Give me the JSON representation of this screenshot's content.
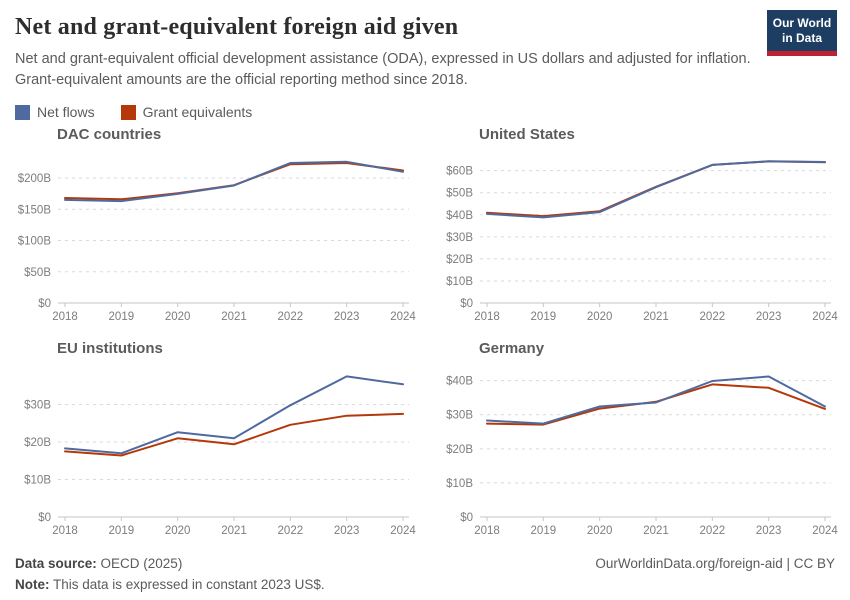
{
  "header": {
    "title": "Net and grant-equivalent foreign aid given",
    "subtitle": "Net and grant-equivalent official development assistance (ODA), expressed in US dollars and adjusted for inflation. Grant-equivalent amounts are the official reporting method since 2018.",
    "logo": {
      "line1": "Our World",
      "line2": "in Data"
    }
  },
  "legend": {
    "items": [
      {
        "label": "Net flows",
        "color": "#4f6a9e"
      },
      {
        "label": "Grant equivalents",
        "color": "#b5380a"
      }
    ]
  },
  "chart_data": [
    {
      "type": "line",
      "title": "DAC countries",
      "x": [
        2018,
        2019,
        2020,
        2021,
        2022,
        2023,
        2024
      ],
      "series": [
        {
          "name": "Net flows",
          "color": "#4f6a9e",
          "values": [
            165,
            163,
            174.5,
            188,
            224,
            226,
            210
          ]
        },
        {
          "name": "Grant equivalents",
          "color": "#b5380a",
          "values": [
            168,
            166,
            175.5,
            188.5,
            222,
            224,
            212
          ]
        }
      ],
      "ylim": [
        0,
        240
      ],
      "ytick_values": [
        0,
        50,
        100,
        150,
        200
      ],
      "ytick_labels": [
        "$0",
        "$50B",
        "$100B",
        "$150B",
        "$200B"
      ],
      "xlabel": "",
      "ylabel": "",
      "grid": "dashed-horizontal",
      "legend_position": "top-of-figure"
    },
    {
      "type": "line",
      "title": "United States",
      "x": [
        2018,
        2019,
        2020,
        2021,
        2022,
        2023,
        2024
      ],
      "series": [
        {
          "name": "Net flows",
          "color": "#4f6a9e",
          "values": [
            40.4,
            38.8,
            41.2,
            52.5,
            62.6,
            64.3,
            63.9
          ]
        },
        {
          "name": "Grant equivalents",
          "color": "#b5380a",
          "values": [
            40.9,
            39.4,
            41.6,
            52.7,
            62.6,
            64.2,
            63.8
          ]
        }
      ],
      "ylim": [
        0,
        68
      ],
      "ytick_values": [
        0,
        10,
        20,
        30,
        40,
        50,
        60
      ],
      "ytick_labels": [
        "$0",
        "$10B",
        "$20B",
        "$30B",
        "$40B",
        "$50B",
        "$60B"
      ],
      "xlabel": "",
      "ylabel": "",
      "grid": "dashed-horizontal",
      "legend_position": "top-of-figure"
    },
    {
      "type": "line",
      "title": "EU institutions",
      "x": [
        2018,
        2019,
        2020,
        2021,
        2022,
        2023,
        2024
      ],
      "series": [
        {
          "name": "Net flows",
          "color": "#4f6a9e",
          "values": [
            18.3,
            17.0,
            22.6,
            21.0,
            29.8,
            37.5,
            35.4
          ]
        },
        {
          "name": "Grant equivalents",
          "color": "#b5380a",
          "values": [
            17.5,
            16.4,
            21.0,
            19.4,
            24.6,
            27.0,
            27.5
          ]
        }
      ],
      "ylim": [
        0,
        40
      ],
      "ytick_values": [
        0,
        10,
        20,
        30
      ],
      "ytick_labels": [
        "$0",
        "$10B",
        "$20B",
        "$30B"
      ],
      "xlabel": "",
      "ylabel": "",
      "grid": "dashed-horizontal",
      "legend_position": "top-of-figure"
    },
    {
      "type": "line",
      "title": "Germany",
      "x": [
        2018,
        2019,
        2020,
        2021,
        2022,
        2023,
        2024
      ],
      "series": [
        {
          "name": "Net flows",
          "color": "#4f6a9e",
          "values": [
            28.3,
            27.4,
            32.4,
            33.6,
            39.9,
            41.2,
            32.4
          ]
        },
        {
          "name": "Grant equivalents",
          "color": "#b5380a",
          "values": [
            27.4,
            27.1,
            31.8,
            33.8,
            38.9,
            37.9,
            31.7
          ]
        }
      ],
      "ylim": [
        0,
        44
      ],
      "ytick_values": [
        0,
        10,
        20,
        30,
        40
      ],
      "ytick_labels": [
        "$0",
        "$10B",
        "$20B",
        "$30B",
        "$40B"
      ],
      "xlabel": "",
      "ylabel": "",
      "grid": "dashed-horizontal",
      "legend_position": "top-of-figure"
    }
  ],
  "footer": {
    "source_label": "Data source:",
    "source_value": " OECD (2025)",
    "note_label": "Note:",
    "note_value": " This data is expressed in constant 2023 US$.",
    "link": "OurWorldinData.org/foreign-aid | CC BY"
  }
}
